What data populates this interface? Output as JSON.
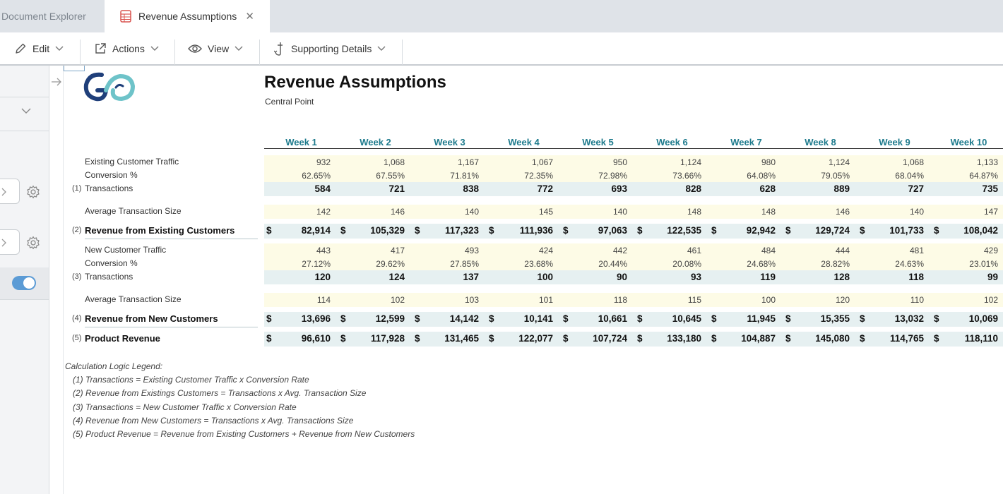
{
  "tabs": [
    {
      "label": "Document Explorer",
      "active": false
    },
    {
      "label": "Revenue Assumptions",
      "active": true
    }
  ],
  "toolbar": {
    "edit": "Edit",
    "actions": "Actions",
    "view": "View",
    "supporting": "Supporting Details"
  },
  "report": {
    "title": "Revenue Assumptions",
    "subtitle": "Central Point",
    "weeks": [
      "Week 1",
      "Week 2",
      "Week 3",
      "Week 4",
      "Week 5",
      "Week 6",
      "Week 7",
      "Week 8",
      "Week 9",
      "Week 10"
    ],
    "rows": [
      {
        "key": "ect",
        "label": "Existing Customer Traffic",
        "num": "",
        "bold": false,
        "band": "yellow",
        "dollar": false,
        "values": [
          "932",
          "1,068",
          "1,167",
          "1,067",
          "950",
          "1,124",
          "980",
          "1,124",
          "1,068",
          "1,133"
        ]
      },
      {
        "key": "conv1",
        "label": "Conversion %",
        "num": "",
        "bold": false,
        "band": "yellow",
        "dollar": false,
        "values": [
          "62.65%",
          "67.55%",
          "71.81%",
          "72.35%",
          "72.98%",
          "73.66%",
          "64.08%",
          "79.05%",
          "68.04%",
          "64.87%"
        ]
      },
      {
        "key": "tx1",
        "label": "Transactions",
        "num": "(1)",
        "bold": true,
        "band": "teal",
        "dollar": false,
        "values": [
          "584",
          "721",
          "838",
          "772",
          "693",
          "828",
          "628",
          "889",
          "727",
          "735"
        ]
      },
      {
        "key": "ats1",
        "label": "Average Transaction Size",
        "num": "",
        "bold": false,
        "band": "yellow",
        "dollar": false,
        "values": [
          "142",
          "146",
          "140",
          "145",
          "140",
          "148",
          "148",
          "146",
          "140",
          "147"
        ]
      },
      {
        "key": "rec",
        "label": "Revenue from Existing Customers",
        "num": "(2)",
        "bold": true,
        "band": "teal",
        "dollar": true,
        "values": [
          "82,914",
          "105,329",
          "117,323",
          "111,936",
          "97,063",
          "122,535",
          "92,942",
          "129,724",
          "101,733",
          "108,042"
        ]
      },
      {
        "key": "nct",
        "label": "New Customer Traffic",
        "num": "",
        "bold": false,
        "band": "yellow",
        "dollar": false,
        "values": [
          "443",
          "417",
          "493",
          "424",
          "442",
          "461",
          "484",
          "444",
          "481",
          "429"
        ]
      },
      {
        "key": "conv2",
        "label": "Conversion %",
        "num": "",
        "bold": false,
        "band": "yellow",
        "dollar": false,
        "values": [
          "27.12%",
          "29.62%",
          "27.85%",
          "23.68%",
          "20.44%",
          "20.08%",
          "24.68%",
          "28.82%",
          "24.63%",
          "23.01%"
        ]
      },
      {
        "key": "tx2",
        "label": "Transactions",
        "num": "(3)",
        "bold": true,
        "band": "teal",
        "dollar": false,
        "values": [
          "120",
          "124",
          "137",
          "100",
          "90",
          "93",
          "119",
          "128",
          "118",
          "99"
        ]
      },
      {
        "key": "ats2",
        "label": "Average Transaction Size",
        "num": "",
        "bold": false,
        "band": "yellow",
        "dollar": false,
        "values": [
          "114",
          "102",
          "103",
          "101",
          "118",
          "115",
          "100",
          "120",
          "110",
          "102"
        ]
      },
      {
        "key": "rnc",
        "label": "Revenue from New Customers",
        "num": "(4)",
        "bold": true,
        "band": "teal",
        "dollar": true,
        "values": [
          "13,696",
          "12,599",
          "14,142",
          "10,141",
          "10,661",
          "10,645",
          "11,945",
          "15,355",
          "13,032",
          "10,069"
        ]
      },
      {
        "key": "pr",
        "label": "Product Revenue",
        "num": "(5)",
        "bold": true,
        "band": "teal",
        "dollar": true,
        "values": [
          "96,610",
          "117,928",
          "131,465",
          "122,077",
          "107,724",
          "133,180",
          "104,887",
          "145,080",
          "114,765",
          "118,110"
        ]
      }
    ],
    "currency_symbol": "$",
    "legend_title": "Calculation Logic Legend:",
    "legend": [
      "(1) Transactions = Existing Customer Traffic x Conversion Rate",
      "(2) Revenue from Existings Customers = Transactions x Avg. Transaction Size",
      "(3) Transactions = New Customer Traffic x Conversion Rate",
      "(4) Revenue from New Customers = Transactions x Avg. Transactions Size",
      "(5) Product Revenue = Revenue from Existing Customers + Revenue from New Customers"
    ]
  },
  "colors": {
    "header_teal": "#1d7a8c",
    "band_yellow": "#fdfbe6",
    "band_teal": "#e6f0f1",
    "toggle_blue": "#5b9bd5"
  }
}
